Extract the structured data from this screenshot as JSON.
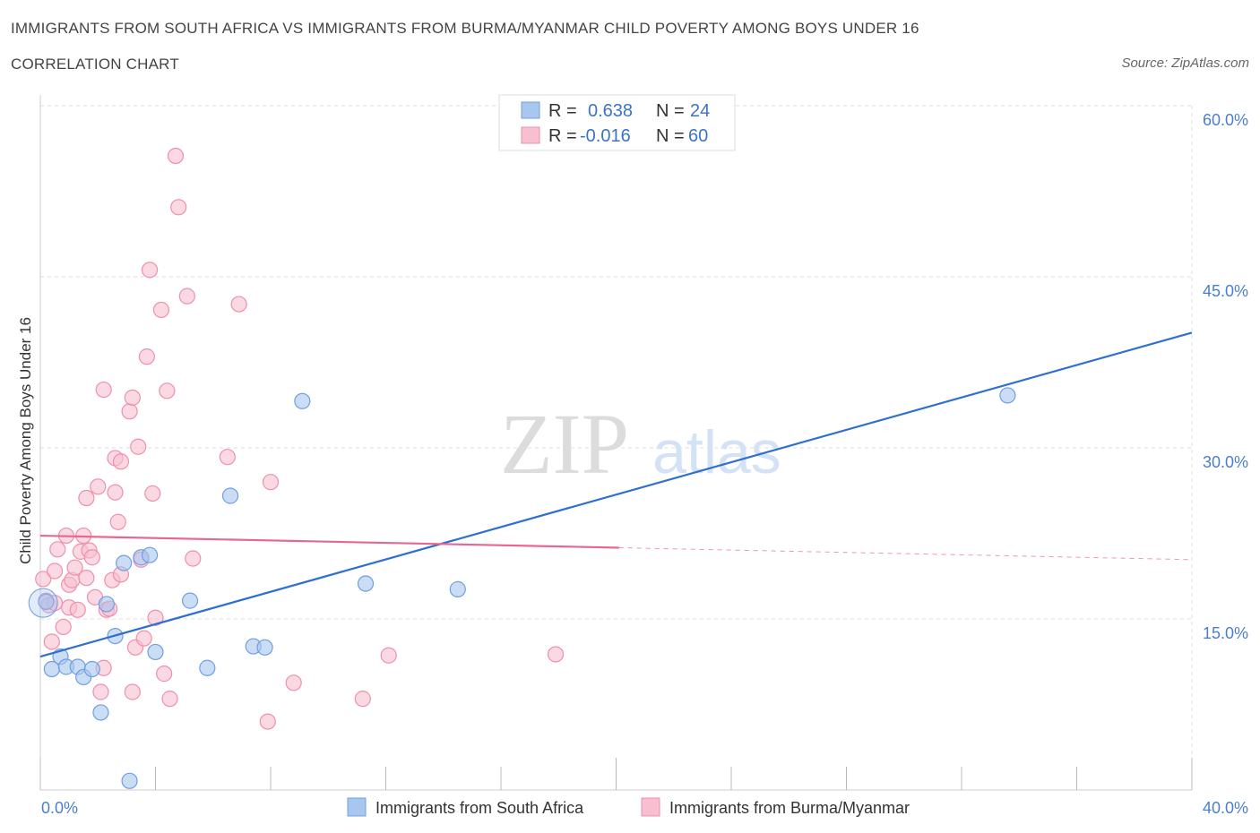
{
  "header": {
    "title": "IMMIGRANTS FROM SOUTH AFRICA VS IMMIGRANTS FROM BURMA/MYANMAR CHILD POVERTY AMONG BOYS UNDER 16",
    "subtitle": "CORRELATION CHART",
    "source": "Source: ZipAtlas.com"
  },
  "watermark": {
    "zip": "ZIP",
    "atlas": "atlas"
  },
  "legend": {
    "rows": [
      {
        "r_label": "R =",
        "r_value": "0.638",
        "n_label": "N =",
        "n_value": "24"
      },
      {
        "r_label": "R =",
        "r_value": "-0.016",
        "n_label": "N =",
        "n_value": "60"
      }
    ]
  },
  "colors": {
    "blue_fill": "#a9c6ef",
    "blue_stroke": "#6f9fe0",
    "blue_line": "#2f6fcf",
    "pink_fill": "#f7bfd0",
    "pink_stroke": "#ef8fae",
    "pink_line": "#e8678f",
    "grid": "#dddddd",
    "tick_text": "#4a7fcf"
  },
  "chart_data": {
    "type": "scatter",
    "title": "IMMIGRANTS FROM SOUTH AFRICA VS IMMIGRANTS FROM BURMA/MYANMAR CHILD POVERTY AMONG BOYS UNDER 16",
    "xlabel": "",
    "ylabel": "Child Poverty Among Boys Under 16",
    "xlim": [
      0,
      40
    ],
    "ylim": [
      0,
      60
    ],
    "x_tick_labels": [
      "0.0%",
      "40.0%"
    ],
    "y_ticks": [
      15,
      30,
      45,
      60
    ],
    "y_tick_labels": [
      "15.0%",
      "30.0%",
      "45.0%",
      "60.0%"
    ],
    "grid": true,
    "legend_position": "top-center",
    "series": [
      {
        "name": "Immigrants from South Africa",
        "color": "#a9c6ef",
        "trend": {
          "x": [
            0,
            40
          ],
          "y": [
            11.7,
            40.1
          ],
          "solid_to": 40
        },
        "points": [
          [
            0.2,
            16.5
          ],
          [
            0.4,
            10.6
          ],
          [
            0.7,
            11.7
          ],
          [
            0.9,
            10.8
          ],
          [
            1.3,
            10.8
          ],
          [
            1.5,
            9.9
          ],
          [
            1.8,
            10.6
          ],
          [
            2.1,
            6.8
          ],
          [
            2.3,
            16.3
          ],
          [
            2.6,
            13.5
          ],
          [
            2.9,
            19.9
          ],
          [
            3.1,
            0.8
          ],
          [
            3.5,
            20.4
          ],
          [
            3.8,
            20.6
          ],
          [
            4.0,
            12.1
          ],
          [
            5.2,
            16.6
          ],
          [
            5.8,
            10.7
          ],
          [
            6.6,
            25.8
          ],
          [
            7.4,
            12.6
          ],
          [
            7.8,
            12.5
          ],
          [
            9.1,
            34.1
          ],
          [
            11.3,
            18.1
          ],
          [
            14.5,
            17.6
          ],
          [
            33.6,
            34.6
          ]
        ]
      },
      {
        "name": "Immigrants from Burma/Myanmar",
        "color": "#f7bfd0",
        "trend": {
          "x": [
            0,
            40
          ],
          "y": [
            22.3,
            20.2
          ],
          "solid_to": 20.1
        },
        "points": [
          [
            0.1,
            18.5
          ],
          [
            0.2,
            16.6
          ],
          [
            0.3,
            16.2
          ],
          [
            0.4,
            13.0
          ],
          [
            0.5,
            19.2
          ],
          [
            0.6,
            21.1
          ],
          [
            0.8,
            14.3
          ],
          [
            0.9,
            22.3
          ],
          [
            1.0,
            18.0
          ],
          [
            1.0,
            16.0
          ],
          [
            1.1,
            18.4
          ],
          [
            1.2,
            19.5
          ],
          [
            1.3,
            15.8
          ],
          [
            1.4,
            20.9
          ],
          [
            1.5,
            22.3
          ],
          [
            1.6,
            18.6
          ],
          [
            1.6,
            25.6
          ],
          [
            1.7,
            21.0
          ],
          [
            1.8,
            20.4
          ],
          [
            1.9,
            16.9
          ],
          [
            2.0,
            26.6
          ],
          [
            2.1,
            8.6
          ],
          [
            2.2,
            10.7
          ],
          [
            2.2,
            35.1
          ],
          [
            2.3,
            15.8
          ],
          [
            2.4,
            15.9
          ],
          [
            2.5,
            18.4
          ],
          [
            2.6,
            29.1
          ],
          [
            2.6,
            26.1
          ],
          [
            2.7,
            23.5
          ],
          [
            2.8,
            18.9
          ],
          [
            2.8,
            28.8
          ],
          [
            3.1,
            33.2
          ],
          [
            3.2,
            34.4
          ],
          [
            3.2,
            8.6
          ],
          [
            3.3,
            12.5
          ],
          [
            3.4,
            30.1
          ],
          [
            3.5,
            20.2
          ],
          [
            3.6,
            13.3
          ],
          [
            3.7,
            38.0
          ],
          [
            3.8,
            45.6
          ],
          [
            3.9,
            26.0
          ],
          [
            4.0,
            15.1
          ],
          [
            4.2,
            42.1
          ],
          [
            4.3,
            10.2
          ],
          [
            4.4,
            35.0
          ],
          [
            4.5,
            8.0
          ],
          [
            4.7,
            55.6
          ],
          [
            4.8,
            51.1
          ],
          [
            5.1,
            43.3
          ],
          [
            5.3,
            20.3
          ],
          [
            6.5,
            29.2
          ],
          [
            6.9,
            42.6
          ],
          [
            7.9,
            6.0
          ],
          [
            8.0,
            27.0
          ],
          [
            8.8,
            9.4
          ],
          [
            11.2,
            8.0
          ],
          [
            12.1,
            11.8
          ],
          [
            17.9,
            11.9
          ],
          [
            0.5,
            16.4
          ]
        ]
      }
    ]
  }
}
